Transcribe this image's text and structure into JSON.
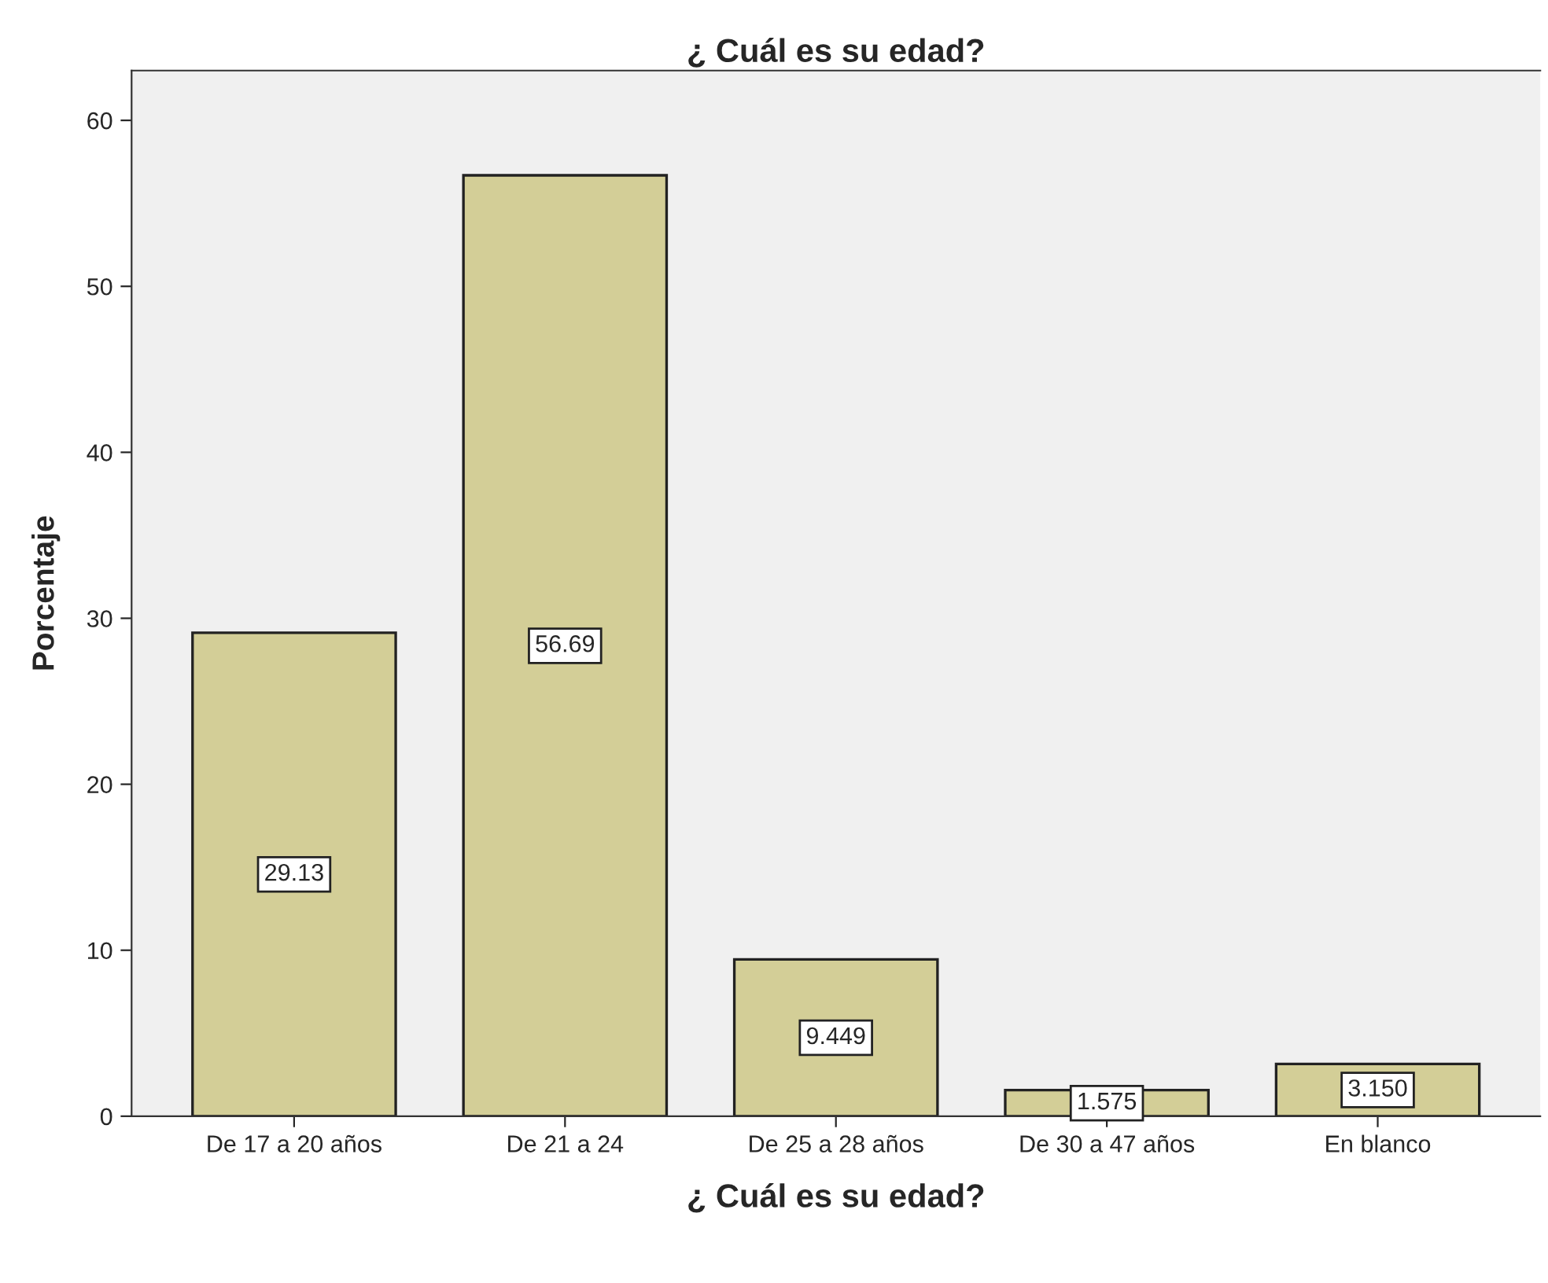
{
  "chart_data": {
    "type": "bar",
    "title": "¿ Cuál es su edad?",
    "xlabel": "¿ Cuál es su edad?",
    "ylabel": "Porcentaje",
    "categories": [
      "De 17 a 20 años",
      "De 21 a 24",
      "De 25 a 28 años",
      "De 30 a 47 años",
      "En blanco"
    ],
    "values": [
      29.13,
      56.69,
      9.449,
      1.575,
      3.15
    ],
    "value_labels": [
      "29.13",
      "56.69",
      "9.449",
      "1.575",
      "3.150"
    ],
    "color": "#d3ce97",
    "ylim": [
      0,
      63
    ],
    "yticks": [
      0,
      10,
      20,
      30,
      40,
      50,
      60
    ],
    "grid": false
  }
}
